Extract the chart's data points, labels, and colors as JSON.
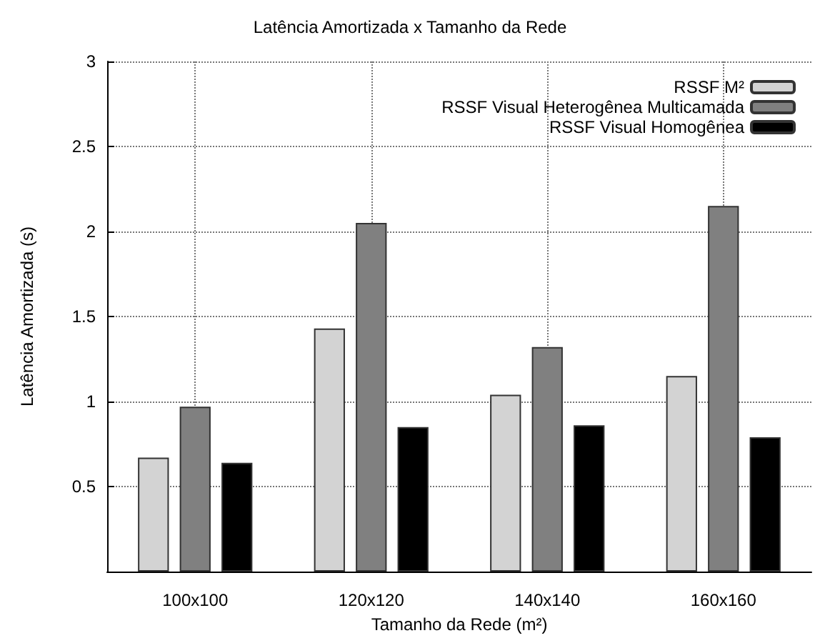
{
  "chart_data": {
    "type": "bar",
    "title": "Latência Amortizada x Tamanho da Rede",
    "xlabel": "Tamanho da Rede (m²)",
    "ylabel": "Latência Amortizada (s)",
    "categories": [
      "100x100",
      "120x120",
      "140x140",
      "160x160"
    ],
    "series": [
      {
        "name": "RSSF M²",
        "color": "#d3d3d3",
        "values": [
          0.67,
          1.43,
          1.04,
          1.15
        ]
      },
      {
        "name": "RSSF Visual Heterogênea Multicamada",
        "color": "#808080",
        "values": [
          0.97,
          2.05,
          1.32,
          2.15
        ]
      },
      {
        "name": "RSSF Visual Homogênea",
        "color": "#000000",
        "values": [
          0.64,
          0.85,
          0.86,
          0.79
        ]
      }
    ],
    "ylim": [
      0,
      3
    ],
    "yticks": [
      0.5,
      1,
      1.5,
      2,
      2.5,
      3
    ],
    "grid": true,
    "legend": "top right"
  }
}
